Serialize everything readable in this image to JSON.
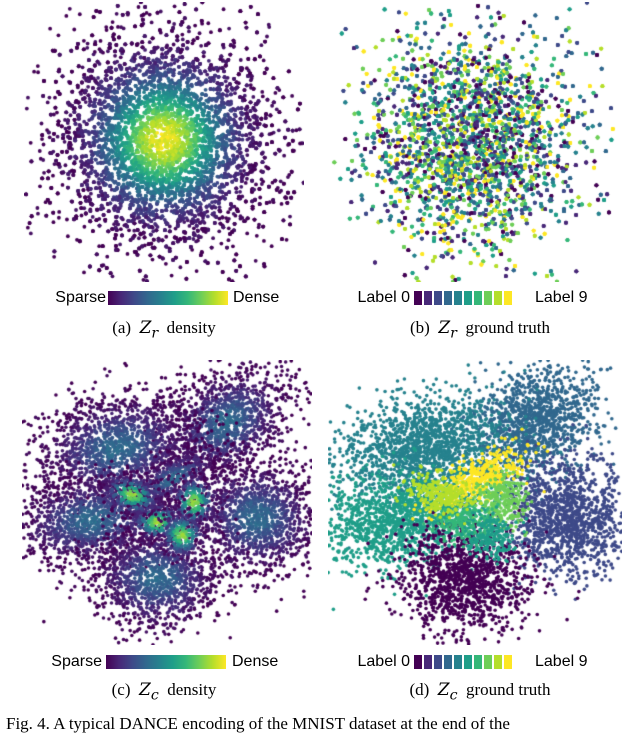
{
  "panels": [
    {
      "id": "a",
      "label_prefix": "(a)",
      "math": "Z",
      "math_sub": "r",
      "label_suffix": "density",
      "legend": {
        "kind": "gradient",
        "left": "Sparse",
        "right": "Dense"
      }
    },
    {
      "id": "b",
      "label_prefix": "(b)",
      "math": "Z",
      "math_sub": "r",
      "label_suffix": "ground truth",
      "legend": {
        "kind": "labels",
        "left": "Label 0",
        "right": "Label 9"
      }
    },
    {
      "id": "c",
      "label_prefix": "(c)",
      "math": "Z",
      "math_sub": "c",
      "label_suffix": "density",
      "legend": {
        "kind": "gradient",
        "left": "Sparse",
        "right": "Dense"
      }
    },
    {
      "id": "d",
      "label_prefix": "(d)",
      "math": "Z",
      "math_sub": "c",
      "label_suffix": "ground truth",
      "legend": {
        "kind": "labels",
        "left": "Label 0",
        "right": "Label 9"
      }
    }
  ],
  "figure_caption": "Fig. 4.  A typical DANCE encoding of the MNIST dataset at the end of the",
  "colors": {
    "viridis": [
      "#440154",
      "#482878",
      "#3e4a89",
      "#31688e",
      "#26828e",
      "#1f9e89",
      "#35b779",
      "#6ece58",
      "#b5de2b",
      "#fde725"
    ]
  }
}
